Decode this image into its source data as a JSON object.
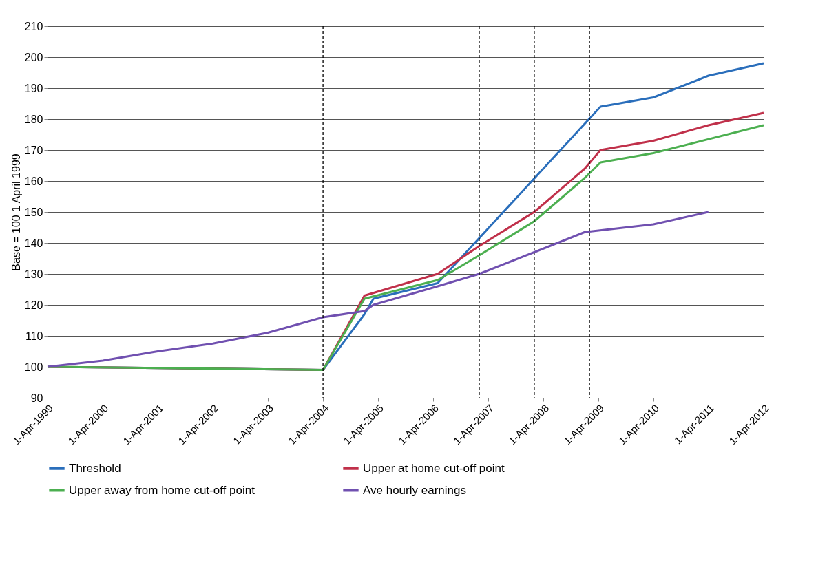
{
  "chart_data": {
    "type": "line",
    "ylabel": "Base = 100 1 April 1999",
    "ylim": [
      90,
      210
    ],
    "yticks": [
      90,
      100,
      110,
      120,
      130,
      140,
      150,
      160,
      170,
      180,
      190,
      200,
      210
    ],
    "xlim": [
      "1999-04-01",
      "2012-04-01"
    ],
    "xticks": [
      {
        "value": "1999-04-01",
        "label": "1-Apr-1999"
      },
      {
        "value": "2000-04-01",
        "label": "1-Apr-2000"
      },
      {
        "value": "2001-04-01",
        "label": "1-Apr-2001"
      },
      {
        "value": "2002-04-01",
        "label": "1-Apr-2002"
      },
      {
        "value": "2003-04-01",
        "label": "1-Apr-2003"
      },
      {
        "value": "2004-04-01",
        "label": "1-Apr-2004"
      },
      {
        "value": "2005-04-01",
        "label": "1-Apr-2005"
      },
      {
        "value": "2006-04-01",
        "label": "1-Apr-2006"
      },
      {
        "value": "2007-04-01",
        "label": "1-Apr-2007"
      },
      {
        "value": "2008-04-01",
        "label": "1-Apr-2008"
      },
      {
        "value": "2009-04-01",
        "label": "1-Apr-2009"
      },
      {
        "value": "2010-04-01",
        "label": "1-Apr-2010"
      },
      {
        "value": "2011-04-01",
        "label": "1-Apr-2011"
      },
      {
        "value": "2012-04-01",
        "label": "1-Apr-2012"
      }
    ],
    "grid": "y",
    "legend": "bottom",
    "marker": "none",
    "line_style": "solid",
    "series": [
      {
        "name": "Threshold",
        "color": "#2a6ebb",
        "x": [
          "1999-04-01",
          "2004-04-01",
          "2005-01-01",
          "2005-03-01",
          "2006-05-01",
          "2009-04-15",
          "2010-04-01",
          "2011-04-01",
          "2012-04-01"
        ],
        "values": [
          100,
          99,
          117,
          122,
          127,
          184,
          187,
          194,
          198
        ]
      },
      {
        "name": "Upper at home cut-off point",
        "color": "#c0304a",
        "x": [
          "1999-04-01",
          "2004-04-01",
          "2005-01-01",
          "2006-05-01",
          "2007-02-01",
          "2008-02-01",
          "2009-01-01",
          "2009-04-15",
          "2010-04-01",
          "2011-04-01",
          "2012-04-01"
        ],
        "values": [
          100,
          99,
          123,
          130,
          139,
          150,
          164,
          170,
          173,
          178,
          182
        ]
      },
      {
        "name": "Upper away from home cut-off point",
        "color": "#4caf50",
        "x": [
          "1999-04-01",
          "2004-04-01",
          "2005-01-01",
          "2006-05-01",
          "2007-02-01",
          "2008-02-01",
          "2009-01-01",
          "2009-04-15",
          "2010-04-01",
          "2012-04-01"
        ],
        "values": [
          100,
          99,
          122,
          128,
          136,
          147,
          161,
          166,
          169,
          178
        ]
      },
      {
        "name": "Ave hourly earnings",
        "color": "#7050b0",
        "x": [
          "1999-04-01",
          "2000-04-01",
          "2001-04-01",
          "2002-04-01",
          "2003-04-01",
          "2004-04-01",
          "2005-01-01",
          "2005-03-01",
          "2006-05-01",
          "2007-02-01",
          "2008-02-01",
          "2009-01-01",
          "2010-04-01",
          "2011-04-01"
        ],
        "values": [
          100,
          102,
          105,
          107.5,
          111,
          116,
          118,
          120,
          126,
          130,
          137,
          143.5,
          146,
          150
        ]
      }
    ],
    "ref_lines": [
      {
        "axis": "x",
        "value": "2004-04-01",
        "color": "#000000",
        "line_style": "dashed"
      },
      {
        "axis": "x",
        "value": "2007-02-01",
        "color": "#000000",
        "line_style": "dashed"
      },
      {
        "axis": "x",
        "value": "2008-02-01",
        "color": "#000000",
        "line_style": "dashed"
      },
      {
        "axis": "x",
        "value": "2009-02-01",
        "color": "#000000",
        "line_style": "dashed"
      }
    ]
  }
}
